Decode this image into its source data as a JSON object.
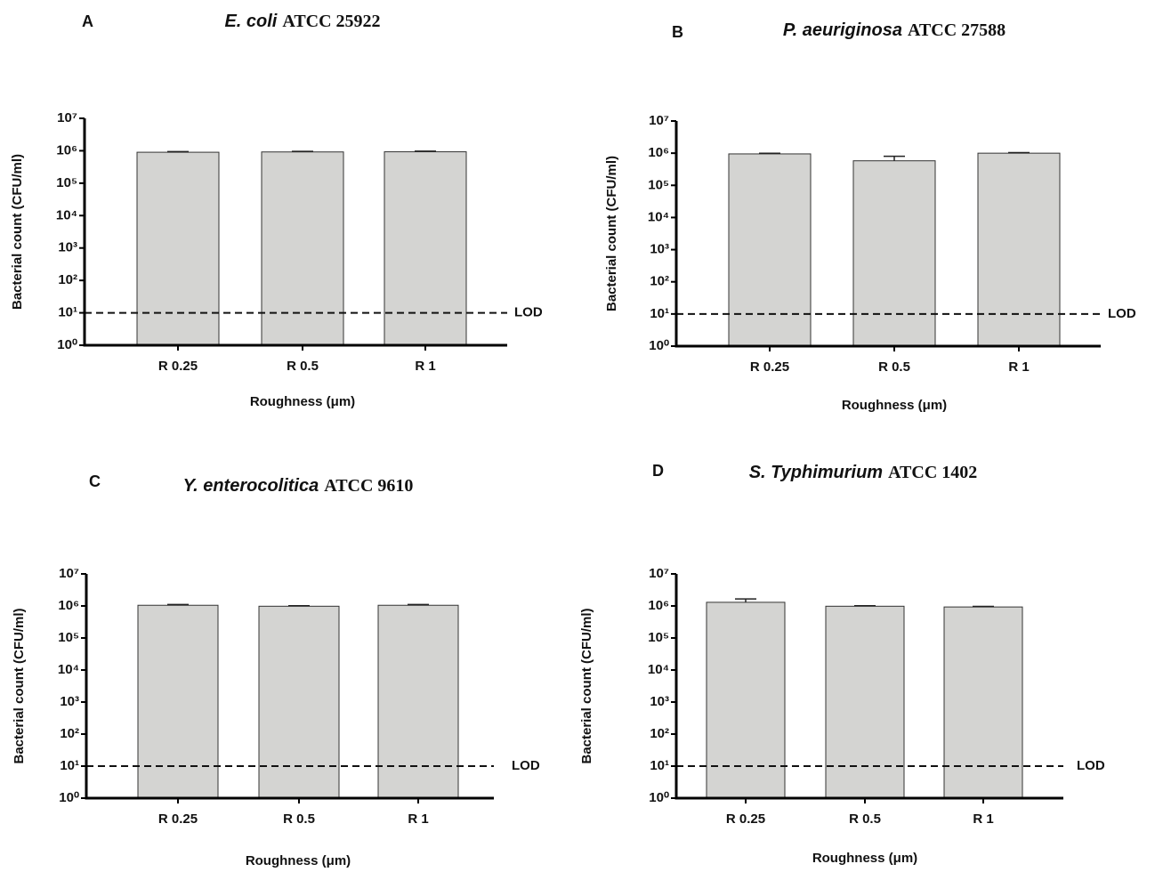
{
  "chart_data": [
    {
      "type": "bar",
      "panel_label": "A",
      "title": [
        "E. coli",
        "ATCC 25922"
      ],
      "x_label": "Roughness (μm)",
      "y_label": "Bacterial count (CFU/ml)",
      "categories": [
        "R 0.25",
        "R 0.5",
        "R 1"
      ],
      "values": [
        900000,
        920000,
        930000
      ],
      "errors": [
        40000,
        40000,
        40000
      ],
      "color": "#d4d4d2",
      "log_scale": true,
      "ylim": [
        1,
        10000000
      ],
      "yticks": [
        {
          "value": 1,
          "label": "10⁰"
        },
        {
          "value": 10,
          "label": "10¹"
        },
        {
          "value": 100,
          "label": "10²"
        },
        {
          "value": 1000,
          "label": "10³"
        },
        {
          "value": 10000,
          "label": "10⁴"
        },
        {
          "value": 100000,
          "label": "10⁵"
        },
        {
          "value": 1000000,
          "label": "10⁶"
        },
        {
          "value": 10000000,
          "label": "10⁷"
        }
      ],
      "reference_line": {
        "value": 10,
        "label": "LOD"
      }
    },
    {
      "type": "bar",
      "panel_label": "B",
      "title": [
        "P. aeuriginosa",
        "ATCC 27588"
      ],
      "x_label": "Roughness (μm)",
      "y_label": "Bacterial count (CFU/ml)",
      "categories": [
        "R 0.25",
        "R 0.5",
        "R 1"
      ],
      "values": [
        950000,
        580000,
        1000000
      ],
      "errors": [
        40000,
        220000,
        40000
      ],
      "color": "#d4d4d2",
      "log_scale": true,
      "ylim": [
        1,
        10000000
      ],
      "yticks": [
        {
          "value": 1,
          "label": "10⁰"
        },
        {
          "value": 10,
          "label": "10¹"
        },
        {
          "value": 100,
          "label": "10²"
        },
        {
          "value": 1000,
          "label": "10³"
        },
        {
          "value": 10000,
          "label": "10⁴"
        },
        {
          "value": 100000,
          "label": "10⁵"
        },
        {
          "value": 1000000,
          "label": "10⁶"
        },
        {
          "value": 10000000,
          "label": "10⁷"
        }
      ],
      "reference_line": {
        "value": 10,
        "label": "LOD"
      }
    },
    {
      "type": "bar",
      "panel_label": "C",
      "title": [
        "Y. enterocolitica",
        "ATCC 9610"
      ],
      "x_label": "Roughness (μm)",
      "y_label": "Bacterial count (CFU/ml)",
      "categories": [
        "R 0.25",
        "R 0.5",
        "R 1"
      ],
      "values": [
        1050000,
        980000,
        1050000
      ],
      "errors": [
        60000,
        40000,
        60000
      ],
      "color": "#d4d4d2",
      "log_scale": true,
      "ylim": [
        1,
        10000000
      ],
      "yticks": [
        {
          "value": 1,
          "label": "10⁰"
        },
        {
          "value": 10,
          "label": "10¹"
        },
        {
          "value": 100,
          "label": "10²"
        },
        {
          "value": 1000,
          "label": "10³"
        },
        {
          "value": 10000,
          "label": "10⁴"
        },
        {
          "value": 100000,
          "label": "10⁵"
        },
        {
          "value": 1000000,
          "label": "10⁶"
        },
        {
          "value": 10000000,
          "label": "10⁷"
        }
      ],
      "reference_line": {
        "value": 10,
        "label": "LOD"
      }
    },
    {
      "type": "bar",
      "panel_label": "D",
      "title": [
        "S. Typhimurium",
        "ATCC 1402"
      ],
      "x_label": "Roughness (μm)",
      "y_label": "Bacterial count (CFU/ml)",
      "categories": [
        "R 0.25",
        "R 0.5",
        "R 1"
      ],
      "values": [
        1300000,
        980000,
        930000
      ],
      "errors": [
        350000,
        40000,
        40000
      ],
      "color": "#d4d4d2",
      "log_scale": true,
      "ylim": [
        1,
        10000000
      ],
      "yticks": [
        {
          "value": 1,
          "label": "10⁰"
        },
        {
          "value": 10,
          "label": "10¹"
        },
        {
          "value": 100,
          "label": "10²"
        },
        {
          "value": 1000,
          "label": "10³"
        },
        {
          "value": 10000,
          "label": "10⁴"
        },
        {
          "value": 100000,
          "label": "10⁵"
        },
        {
          "value": 1000000,
          "label": "10⁶"
        },
        {
          "value": 10000000,
          "label": "10⁷"
        }
      ],
      "reference_line": {
        "value": 10,
        "label": "LOD"
      }
    }
  ]
}
